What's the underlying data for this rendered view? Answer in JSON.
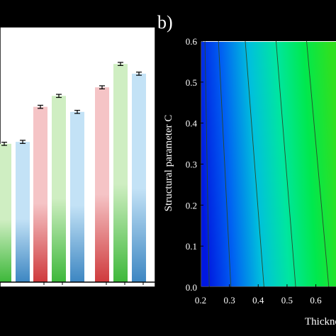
{
  "colors": {
    "background": "#000000",
    "panel_background": "#ffffff",
    "contour_line": "#2a4a2a"
  },
  "chart_data": [
    {
      "type": "bar",
      "panel_label": "",
      "visible_tick_labels": [
        "",
        "",
        "",
        "",
        "",
        "",
        "",
        ""
      ],
      "series": [
        {
          "color_top": "#f5c4c6",
          "color_bottom": "#cf3a3c",
          "values": [
            null,
            4.5,
            5.0
          ]
        },
        {
          "color_top": "#cfeec2",
          "color_bottom": "#3db83a",
          "values": [
            3.55,
            4.78,
            5.6
          ]
        },
        {
          "color_top": "#c3e2f6",
          "color_bottom": "#3c86c2",
          "values": [
            3.6,
            4.37,
            5.35
          ]
        }
      ],
      "error_bar": 0.04,
      "ylim": [
        0,
        6.55
      ],
      "grid": false
    },
    {
      "type": "heatmap",
      "panel_label": "b)",
      "xlabel": "Thicknes",
      "ylabel": "Structural parameter C",
      "xlim": [
        0.2,
        0.67
      ],
      "ylim": [
        0.0,
        0.6
      ],
      "x_ticks": [
        "0.2",
        "0.3",
        "0.4",
        "0.5",
        "0.6"
      ],
      "x_tick_values": [
        0.2,
        0.3,
        0.4,
        0.5,
        0.6
      ],
      "y_ticks": [
        "0.0",
        "0.1",
        "0.2",
        "0.3",
        "0.4",
        "0.5",
        "0.6"
      ],
      "y_tick_values": [
        0.0,
        0.1,
        0.2,
        0.3,
        0.4,
        0.5,
        0.6
      ],
      "color_scale": [
        "#0018e0",
        "#0062f2",
        "#00c0dc",
        "#00e6a0",
        "#00e84e",
        "#30e020"
      ],
      "contours": [
        {
          "x_at_c0": 0.23,
          "x_at_c06": 0.215
        },
        {
          "x_at_c0": 0.305,
          "x_at_c06": 0.262
        },
        {
          "x_at_c0": 0.42,
          "x_at_c06": 0.355
        },
        {
          "x_at_c0": 0.53,
          "x_at_c06": 0.462
        },
        {
          "x_at_c0": 0.645,
          "x_at_c06": 0.568
        }
      ],
      "grid": false
    }
  ]
}
